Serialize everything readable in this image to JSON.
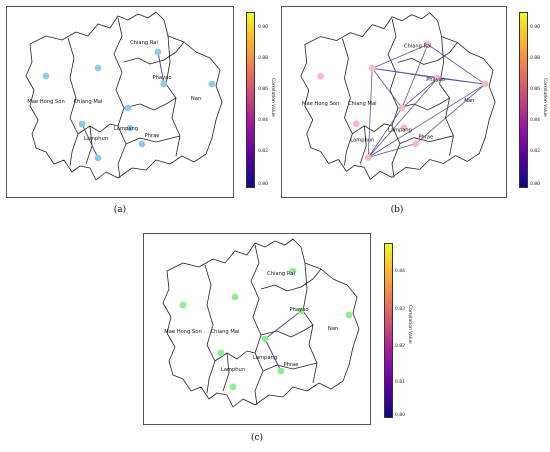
{
  "panels": [
    {
      "letter": "(a)",
      "node_color": "#87ceeb",
      "colorbar": {
        "label": "Correlation Value",
        "ticks": [
          "0.90",
          "0.88",
          "0.86",
          "0.84",
          "0.82",
          "0.80"
        ]
      }
    },
    {
      "letter": "(b)",
      "node_color": "#ffb6c1",
      "colorbar": {
        "label": "Correlation Value",
        "ticks": [
          "0.90",
          "0.88",
          "0.86",
          "0.84",
          "0.82",
          "0.80"
        ]
      }
    },
    {
      "letter": "(c)",
      "node_color": "#90ee90",
      "colorbar": {
        "label": "Correlation Value",
        "ticks": [
          "0.84",
          "0.83",
          "0.82",
          "0.81",
          "0.80"
        ]
      }
    }
  ],
  "provinces": [
    "Chiang Rai",
    "Phayao",
    "Nan",
    "Mae Hong Son",
    "Chiang Mai",
    "Lampang",
    "Lamphun",
    "Phrae"
  ],
  "edge_color": "#4b3f9b"
}
